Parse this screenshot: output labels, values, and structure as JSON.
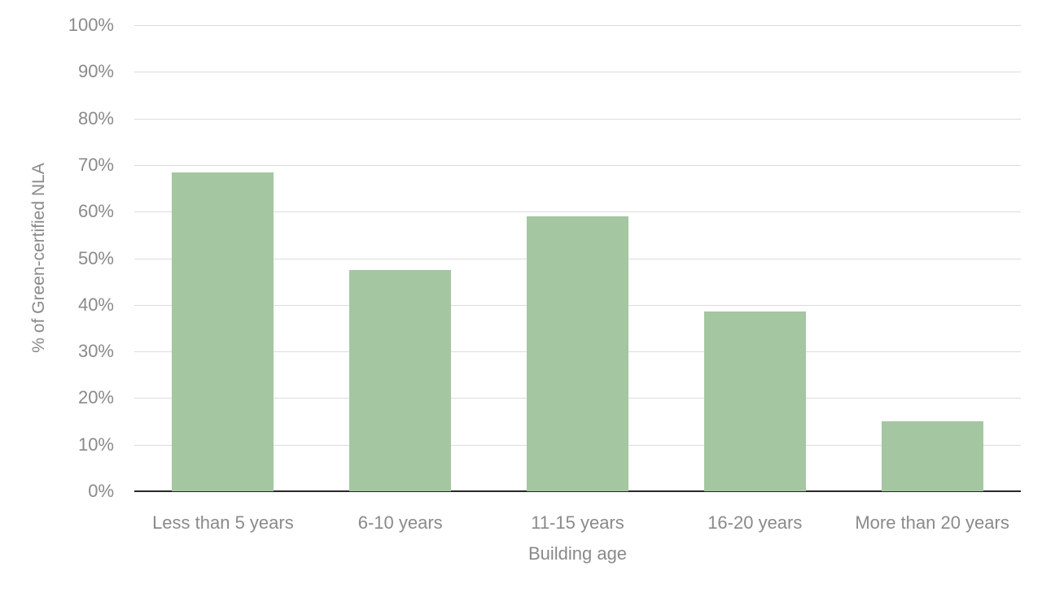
{
  "chart_data": {
    "type": "bar",
    "title": "",
    "categories": [
      "Less than 5 years",
      "6-10 years",
      "11-15 years",
      "16-20 years",
      "More than 20 years"
    ],
    "values": [
      68.5,
      47.5,
      59,
      38.5,
      15
    ],
    "xlabel": "Building age",
    "ylabel": "% of Green-certified NLA",
    "ylim": [
      0,
      100
    ],
    "ytick_step": 10,
    "ytick_suffix": "%",
    "grid": "horizontal",
    "legend": "none",
    "bar_color": "#a4c6a1",
    "gridline_color": "#dcdcdc",
    "axis_line_color": "#262626",
    "label_color": "#8a8a8a"
  }
}
